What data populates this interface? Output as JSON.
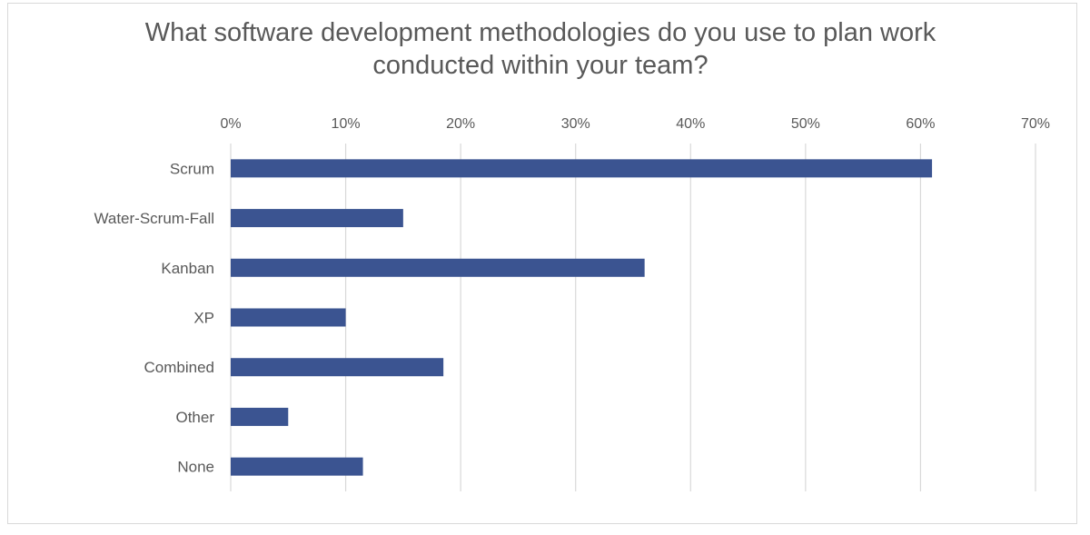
{
  "chart_data": {
    "type": "bar",
    "orientation": "horizontal",
    "title": "What software development methodologies do you use to plan work conducted within your team?",
    "categories": [
      "Scrum",
      "Water-Scrum-Fall",
      "Kanban",
      "XP",
      "Combined",
      "Other",
      "None"
    ],
    "values": [
      61,
      15,
      36,
      10,
      18.5,
      5,
      11.5
    ],
    "xlim": [
      0,
      70
    ],
    "x_ticks": [
      "0%",
      "10%",
      "20%",
      "30%",
      "40%",
      "50%",
      "60%",
      "70%"
    ],
    "x_axis_position": "top",
    "grid": true,
    "legend": "none",
    "bar_color": "#3b5491",
    "grid_color": "#d9d9d9"
  }
}
